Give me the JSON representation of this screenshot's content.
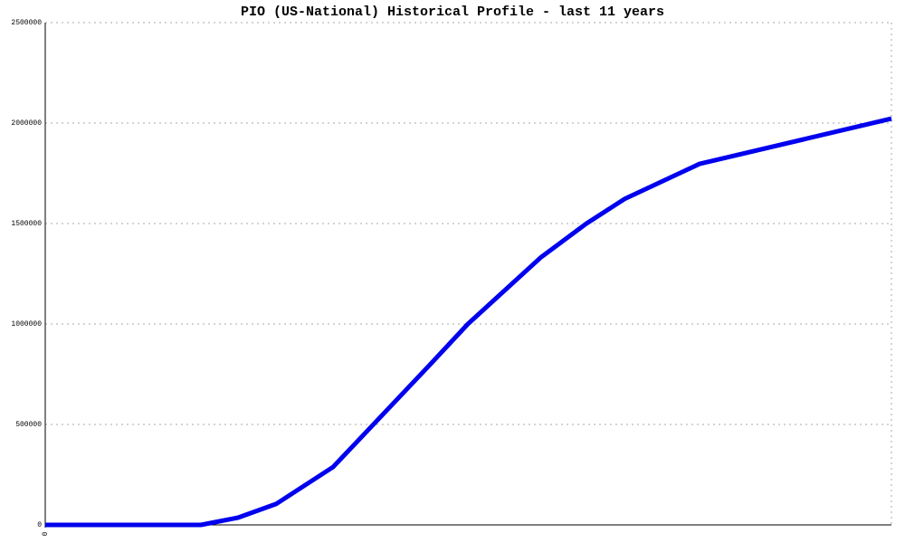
{
  "chart_data": {
    "type": "line",
    "title": "PIO (US-National) Historical Profile - last 11 years",
    "x": [
      0,
      172,
      213,
      255,
      318,
      425,
      467,
      548,
      598,
      640,
      723,
      935
    ],
    "series": [
      {
        "color": "#0000ee",
        "values": [
          0,
          0,
          36000,
          104000,
          288000,
          797000,
          1000000,
          1333000,
          1500000,
          1622000,
          1797000,
          2022000
        ]
      }
    ],
    "xlim": [
      0,
      935
    ],
    "xticks": [
      0
    ],
    "ylim": [
      0,
      2500000
    ],
    "yticks": [
      0,
      500000,
      1000000,
      1500000,
      2000000,
      2500000
    ],
    "grid": true
  }
}
